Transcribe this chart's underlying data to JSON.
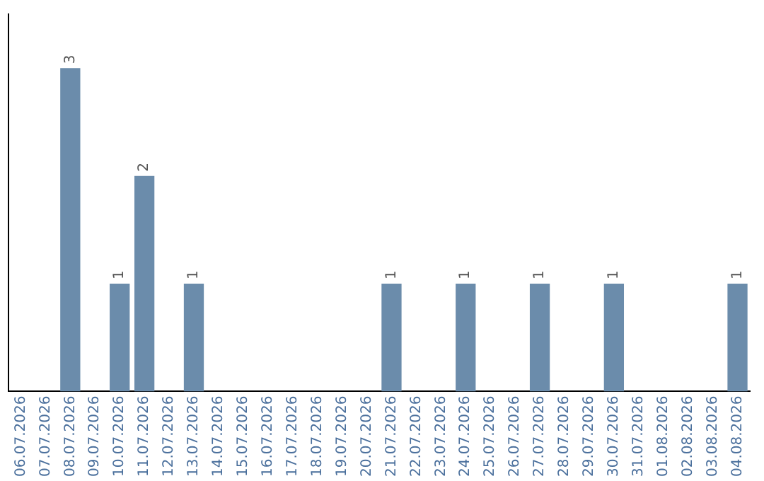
{
  "chart_data": {
    "type": "bar",
    "categories": [
      "06.07.2026",
      "07.07.2026",
      "08.07.2026",
      "09.07.2026",
      "10.07.2026",
      "11.07.2026",
      "12.07.2026",
      "13.07.2026",
      "14.07.2026",
      "15.07.2026",
      "16.07.2026",
      "17.07.2026",
      "18.07.2026",
      "19.07.2026",
      "20.07.2026",
      "21.07.2026",
      "22.07.2026",
      "23.07.2026",
      "24.07.2026",
      "25.07.2026",
      "26.07.2026",
      "27.07.2026",
      "28.07.2026",
      "29.07.2026",
      "30.07.2026",
      "31.07.2026",
      "01.08.2026",
      "02.08.2026",
      "03.08.2026",
      "04.08.2026"
    ],
    "values": [
      0,
      0,
      3,
      0,
      1,
      2,
      0,
      1,
      0,
      0,
      0,
      0,
      0,
      0,
      0,
      1,
      0,
      0,
      1,
      0,
      0,
      1,
      0,
      0,
      1,
      0,
      0,
      0,
      0,
      1
    ],
    "value_labels": [
      null,
      null,
      "3",
      null,
      "1",
      "2",
      null,
      "1",
      null,
      null,
      null,
      null,
      null,
      null,
      null,
      "1",
      null,
      null,
      "1",
      null,
      null,
      "1",
      null,
      null,
      "1",
      null,
      null,
      null,
      null,
      "1"
    ],
    "color": "#6b8cab",
    "tick_labels": "x"
  }
}
